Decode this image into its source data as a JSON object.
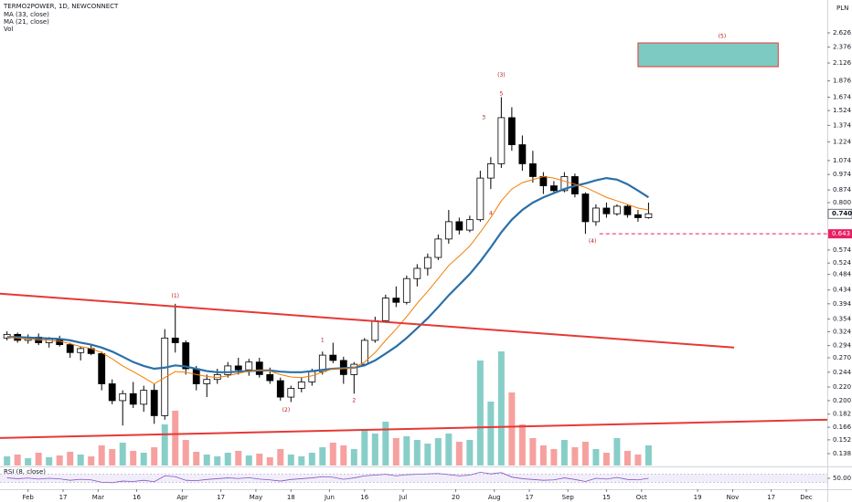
{
  "chart_data": {
    "type": "candlestick",
    "title": "TERMO2POWER, 1D, NEWCONNECT",
    "volume_label": "Vol",
    "currency": "PLN",
    "xlim": [
      -8,
      228
    ],
    "xticks": [
      {
        "value": 0,
        "label": "Feb"
      },
      {
        "value": 10,
        "label": "17"
      },
      {
        "value": 20,
        "label": "Mar"
      },
      {
        "value": 31,
        "label": "16"
      },
      {
        "value": 44,
        "label": "Apr"
      },
      {
        "value": 55,
        "label": "17"
      },
      {
        "value": 65,
        "label": "May"
      },
      {
        "value": 75,
        "label": "18"
      },
      {
        "value": 86,
        "label": "Jun"
      },
      {
        "value": 96,
        "label": "16"
      },
      {
        "value": 107,
        "label": "Jul"
      },
      {
        "value": 122,
        "label": "20"
      },
      {
        "value": 133,
        "label": "Aug"
      },
      {
        "value": 143,
        "label": "17"
      },
      {
        "value": 154,
        "label": "Sep"
      },
      {
        "value": 165,
        "label": "15"
      },
      {
        "value": 175,
        "label": "Oct"
      },
      {
        "value": 191,
        "label": "19"
      },
      {
        "value": 201,
        "label": "Nov"
      },
      {
        "value": 212,
        "label": "17"
      },
      {
        "value": 222,
        "label": "Dec"
      }
    ],
    "ylim": [
      0.127,
      3.305
    ],
    "yscale": "log",
    "grid": false,
    "yticks": [
      2.626,
      2.376,
      2.126,
      1.876,
      1.674,
      1.524,
      1.374,
      1.224,
      1.074,
      0.974,
      0.874,
      {
        "value": 0.8,
        "label": "0.800"
      },
      0.574,
      0.524,
      0.484,
      0.434,
      0.394,
      0.354,
      0.324,
      0.294,
      {
        "value": 0.27,
        "label": "0.270"
      },
      0.244,
      {
        "value": 0.22,
        "label": "0.220"
      },
      {
        "value": 0.2,
        "label": "0.200"
      },
      0.182,
      0.166,
      0.152,
      0.138
    ],
    "up_color": "#ffffff",
    "down_color": "#000000",
    "volume_up_color": "#26a69a",
    "volume_down_color": "#ef5350",
    "vlim": [
      0,
      130
    ],
    "candles": {
      "x": [
        -6,
        -3,
        0,
        3,
        6,
        9,
        12,
        15,
        18,
        21,
        24,
        27,
        30,
        33,
        36,
        39,
        42,
        45,
        48,
        51,
        54,
        57,
        60,
        63,
        66,
        69,
        72,
        75,
        78,
        81,
        84,
        87,
        90,
        93,
        96,
        99,
        102,
        105,
        108,
        111,
        114,
        117,
        120,
        123,
        126,
        129,
        132,
        135,
        138,
        141,
        144,
        147,
        150,
        153,
        156,
        159,
        162,
        165,
        168,
        171,
        174,
        177
      ],
      "open": [
        0.31,
        0.318,
        0.305,
        0.312,
        0.3,
        0.308,
        0.296,
        0.28,
        0.288,
        0.278,
        0.225,
        0.2,
        0.21,
        0.195,
        0.215,
        0.18,
        0.31,
        0.3,
        0.25,
        0.225,
        0.232,
        0.24,
        0.255,
        0.248,
        0.262,
        0.24,
        0.23,
        0.205,
        0.218,
        0.228,
        0.245,
        0.275,
        0.265,
        0.24,
        0.258,
        0.305,
        0.35,
        0.41,
        0.398,
        0.47,
        0.505,
        0.545,
        0.62,
        0.7,
        0.66,
        0.71,
        0.95,
        1.05,
        1.45,
        1.2,
        1.05,
        0.96,
        0.9,
        0.87,
        0.96,
        0.85,
        0.7,
        0.77,
        0.74,
        0.78,
        0.735,
        0.72
      ],
      "high": [
        0.325,
        0.322,
        0.318,
        0.32,
        0.312,
        0.315,
        0.3,
        0.292,
        0.296,
        0.282,
        0.232,
        0.215,
        0.228,
        0.222,
        0.225,
        0.33,
        0.394,
        0.305,
        0.255,
        0.24,
        0.25,
        0.262,
        0.27,
        0.268,
        0.27,
        0.252,
        0.235,
        0.222,
        0.235,
        0.25,
        0.282,
        0.3,
        0.272,
        0.262,
        0.31,
        0.36,
        0.42,
        0.445,
        0.48,
        0.52,
        0.56,
        0.64,
        0.76,
        0.72,
        0.73,
        1.0,
        1.1,
        1.674,
        1.56,
        1.28,
        1.15,
        0.99,
        0.93,
        0.99,
        0.98,
        0.86,
        0.79,
        0.8,
        0.79,
        0.79,
        0.76,
        0.8
      ],
      "low": [
        0.305,
        0.3,
        0.298,
        0.295,
        0.29,
        0.292,
        0.27,
        0.265,
        0.275,
        0.215,
        0.195,
        0.168,
        0.19,
        0.185,
        0.17,
        0.175,
        0.28,
        0.24,
        0.215,
        0.205,
        0.225,
        0.235,
        0.24,
        0.238,
        0.235,
        0.225,
        0.2,
        0.198,
        0.212,
        0.222,
        0.24,
        0.26,
        0.225,
        0.21,
        0.255,
        0.3,
        0.345,
        0.385,
        0.392,
        0.445,
        0.48,
        0.535,
        0.6,
        0.64,
        0.65,
        0.7,
        0.88,
        1.02,
        1.15,
        1.0,
        0.92,
        0.85,
        0.85,
        0.86,
        0.83,
        0.643,
        0.68,
        0.72,
        0.73,
        0.72,
        0.7,
        0.715
      ],
      "close": [
        0.318,
        0.305,
        0.312,
        0.3,
        0.308,
        0.296,
        0.28,
        0.288,
        0.278,
        0.225,
        0.2,
        0.21,
        0.195,
        0.215,
        0.18,
        0.31,
        0.3,
        0.25,
        0.225,
        0.232,
        0.24,
        0.255,
        0.248,
        0.262,
        0.24,
        0.23,
        0.205,
        0.218,
        0.228,
        0.245,
        0.275,
        0.265,
        0.24,
        0.258,
        0.305,
        0.35,
        0.41,
        0.398,
        0.47,
        0.505,
        0.545,
        0.62,
        0.7,
        0.66,
        0.71,
        0.95,
        1.05,
        1.45,
        1.2,
        1.05,
        0.96,
        0.9,
        0.87,
        0.96,
        0.85,
        0.7,
        0.77,
        0.74,
        0.78,
        0.735,
        0.72,
        0.74
      ],
      "volume": [
        10,
        12,
        8,
        14,
        9,
        11,
        15,
        12,
        10,
        22,
        18,
        25,
        16,
        14,
        20,
        45,
        60,
        28,
        15,
        12,
        10,
        14,
        16,
        11,
        13,
        9,
        18,
        12,
        10,
        14,
        20,
        25,
        22,
        18,
        40,
        35,
        48,
        30,
        32,
        28,
        24,
        30,
        35,
        26,
        28,
        115,
        70,
        125,
        80,
        45,
        30,
        22,
        18,
        28,
        20,
        26,
        18,
        14,
        30,
        16,
        12,
        22
      ]
    },
    "series": [
      {
        "name": "MA (33, close)",
        "color": "#2a6fa8",
        "width": 2.2,
        "values": [
          0.312,
          0.312,
          0.311,
          0.31,
          0.309,
          0.308,
          0.305,
          0.3,
          0.296,
          0.29,
          0.282,
          0.272,
          0.262,
          0.255,
          0.25,
          0.252,
          0.256,
          0.254,
          0.25,
          0.246,
          0.244,
          0.244,
          0.245,
          0.246,
          0.247,
          0.247,
          0.245,
          0.244,
          0.244,
          0.246,
          0.248,
          0.25,
          0.251,
          0.252,
          0.256,
          0.265,
          0.278,
          0.292,
          0.31,
          0.332,
          0.356,
          0.385,
          0.418,
          0.45,
          0.485,
          0.53,
          0.585,
          0.65,
          0.71,
          0.76,
          0.8,
          0.83,
          0.855,
          0.88,
          0.9,
          0.915,
          0.935,
          0.95,
          0.94,
          0.91,
          0.87,
          0.83
        ]
      },
      {
        "name": "MA (21, close)",
        "color": "#f57c00",
        "width": 1,
        "values": [
          0.312,
          0.31,
          0.308,
          0.306,
          0.305,
          0.303,
          0.298,
          0.292,
          0.288,
          0.28,
          0.268,
          0.255,
          0.245,
          0.235,
          0.225,
          0.235,
          0.245,
          0.244,
          0.24,
          0.237,
          0.235,
          0.238,
          0.242,
          0.246,
          0.248,
          0.246,
          0.24,
          0.236,
          0.235,
          0.238,
          0.244,
          0.25,
          0.25,
          0.252,
          0.262,
          0.28,
          0.305,
          0.33,
          0.36,
          0.395,
          0.43,
          0.47,
          0.515,
          0.55,
          0.59,
          0.65,
          0.72,
          0.81,
          0.88,
          0.92,
          0.94,
          0.96,
          0.95,
          0.93,
          0.91,
          0.89,
          0.86,
          0.83,
          0.81,
          0.79,
          0.77,
          0.76
        ]
      }
    ],
    "trendlines": [
      {
        "x": [
          -8,
          201.4
        ],
        "y": [
          0.423,
          0.29
        ],
        "color": "#e53935"
      },
      {
        "x": [
          -8,
          228
        ],
        "y": [
          0.154,
          0.175
        ],
        "color": "#e53935"
      }
    ],
    "box": {
      "x": [
        174,
        214
      ],
      "y": [
        2.072,
        2.447
      ],
      "color": "#26a69a"
    },
    "level": {
      "x": 163,
      "value": 0.643,
      "label": "0.643",
      "color": "#e91e63"
    },
    "last_price": {
      "value": 0.74,
      "label": "0.740"
    },
    "annotations": [
      {
        "text": "(1)",
        "x": 42,
        "y": 0.415
      },
      {
        "text": "(2)",
        "x": 73.6,
        "y": 0.187
      },
      {
        "text": "(3)",
        "x": 135,
        "y": 1.95
      },
      {
        "text": "(4)",
        "x": 161,
        "y": 0.61
      },
      {
        "text": "(5)",
        "x": 198,
        "y": 2.56
      },
      {
        "text": "1",
        "x": 84,
        "y": 0.305
      },
      {
        "text": "2",
        "x": 93,
        "y": 0.2
      },
      {
        "text": "3",
        "x": 130,
        "y": 1.45
      },
      {
        "text": "4",
        "x": 132,
        "y": 0.74
      },
      {
        "text": "5",
        "x": 135,
        "y": 1.71
      }
    ],
    "annotation_color": "#b71c1c",
    "rsi": {
      "name": "RSI (8, close)",
      "color": "#7e57c2",
      "ylim": [
        0,
        100
      ],
      "band": [
        30,
        70
      ],
      "yticks": [
        {
          "value": 50,
          "label": "50.00"
        }
      ],
      "values": [
        52,
        48,
        51,
        46,
        50,
        47,
        40,
        45,
        42,
        30,
        28,
        36,
        34,
        40,
        33,
        62,
        58,
        40,
        38,
        44,
        48,
        52,
        49,
        53,
        46,
        42,
        36,
        44,
        48,
        52,
        58,
        55,
        45,
        52,
        62,
        66,
        70,
        62,
        68,
        70,
        72,
        74,
        68,
        62,
        66,
        80,
        72,
        78,
        56,
        48,
        44,
        40,
        42,
        52,
        44,
        34,
        50,
        46,
        54,
        44,
        42,
        50
      ]
    }
  }
}
